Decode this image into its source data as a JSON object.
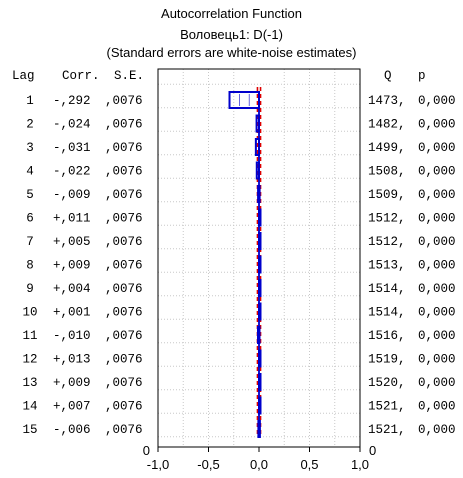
{
  "titles": {
    "line1": "Autocorrelation Function",
    "line2": "Воловець1: D(-1)",
    "line3": "(Standard errors are white-noise estimates)"
  },
  "headers": {
    "lag": "Lag",
    "corr": "Corr.",
    "se": "S.E.",
    "q": "Q",
    "p": "p"
  },
  "chart_data": {
    "type": "bar",
    "orientation": "horizontal",
    "xlim": [
      -1.0,
      1.0
    ],
    "xticks": [
      "-1,0",
      "-0,5",
      "0,0",
      "0,5",
      "1,0"
    ],
    "xtick_values": [
      -1.0,
      -0.5,
      0.0,
      0.5,
      1.0
    ],
    "axis_zero_left": "0",
    "axis_zero_right": "0",
    "grid": true,
    "rows": [
      {
        "lag": "1",
        "corr_label": "-,292",
        "se_label": ",0076",
        "q_label": "1473,",
        "p_label": "0,000",
        "value": -0.292
      },
      {
        "lag": "2",
        "corr_label": "-,024",
        "se_label": ",0076",
        "q_label": "1482,",
        "p_label": "0,000",
        "value": -0.024
      },
      {
        "lag": "3",
        "corr_label": "-,031",
        "se_label": ",0076",
        "q_label": "1499,",
        "p_label": "0,000",
        "value": -0.031
      },
      {
        "lag": "4",
        "corr_label": "-,022",
        "se_label": ",0076",
        "q_label": "1508,",
        "p_label": "0,000",
        "value": -0.022
      },
      {
        "lag": "5",
        "corr_label": "-,009",
        "se_label": ",0076",
        "q_label": "1509,",
        "p_label": "0,000",
        "value": -0.009
      },
      {
        "lag": "6",
        "corr_label": "+,011",
        "se_label": ",0076",
        "q_label": "1512,",
        "p_label": "0,000",
        "value": 0.011
      },
      {
        "lag": "7",
        "corr_label": "+,005",
        "se_label": ",0076",
        "q_label": "1512,",
        "p_label": "0,000",
        "value": 0.005
      },
      {
        "lag": "8",
        "corr_label": "+,009",
        "se_label": ",0076",
        "q_label": "1513,",
        "p_label": "0,000",
        "value": 0.009
      },
      {
        "lag": "9",
        "corr_label": "+,004",
        "se_label": ",0076",
        "q_label": "1514,",
        "p_label": "0,000",
        "value": 0.004
      },
      {
        "lag": "10",
        "corr_label": "+,001",
        "se_label": ",0076",
        "q_label": "1514,",
        "p_label": "0,000",
        "value": 0.001
      },
      {
        "lag": "11",
        "corr_label": "-,010",
        "se_label": ",0076",
        "q_label": "1516,",
        "p_label": "0,000",
        "value": -0.01
      },
      {
        "lag": "12",
        "corr_label": "+,013",
        "se_label": ",0076",
        "q_label": "1519,",
        "p_label": "0,000",
        "value": 0.013
      },
      {
        "lag": "13",
        "corr_label": "+,009",
        "se_label": ",0076",
        "q_label": "1520,",
        "p_label": "0,000",
        "value": 0.009
      },
      {
        "lag": "14",
        "corr_label": "+,007",
        "se_label": ",0076",
        "q_label": "1521,",
        "p_label": "0,000",
        "value": 0.007
      },
      {
        "lag": "15",
        "corr_label": "-,006",
        "se_label": ",0076",
        "q_label": "1521,",
        "p_label": "0,000",
        "value": -0.006
      }
    ],
    "standard_error": 0.0076,
    "colors": {
      "bar": "#0000cc",
      "confidence": "#dd0000",
      "grid": "#c8c8c8",
      "frame": "#000000"
    }
  }
}
